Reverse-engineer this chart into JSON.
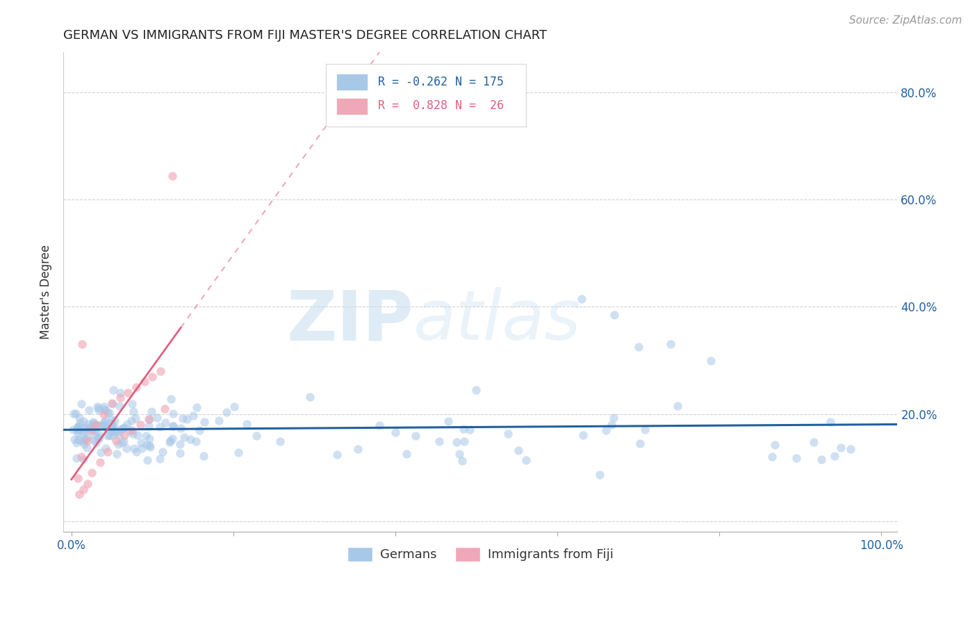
{
  "title": "GERMAN VS IMMIGRANTS FROM FIJI MASTER'S DEGREE CORRELATION CHART",
  "source_text": "Source: ZipAtlas.com",
  "ylabel": "Master's Degree",
  "xlim": [
    0.0,
    1.0
  ],
  "ylim": [
    0.0,
    0.85
  ],
  "ytick_vals": [
    0.0,
    0.2,
    0.4,
    0.6,
    0.8
  ],
  "ytick_labels": [
    "",
    "20.0%",
    "40.0%",
    "60.0%",
    "80.0%"
  ],
  "xtick_vals": [
    0.0,
    0.2,
    0.4,
    0.6,
    0.8,
    1.0
  ],
  "xtick_labels": [
    "0.0%",
    "",
    "",
    "",
    "",
    "100.0%"
  ],
  "blue_R": -0.262,
  "blue_N": 175,
  "pink_R": 0.828,
  "pink_N": 26,
  "background_color": "#ffffff",
  "grid_color": "#cccccc",
  "blue_dot_color": "#a8c8e8",
  "pink_dot_color": "#f0a8b8",
  "blue_line_color": "#2060a0",
  "pink_line_color": "#e06080",
  "watermark_zip": "ZIP",
  "watermark_atlas": "atlas",
  "legend_blue_text1": "R = -0.262",
  "legend_blue_text2": "N = 175",
  "legend_pink_text1": "R =  0.828",
  "legend_pink_text2": "N =  26",
  "title_fontsize": 13,
  "tick_fontsize": 12,
  "ylabel_fontsize": 12,
  "source_fontsize": 11
}
